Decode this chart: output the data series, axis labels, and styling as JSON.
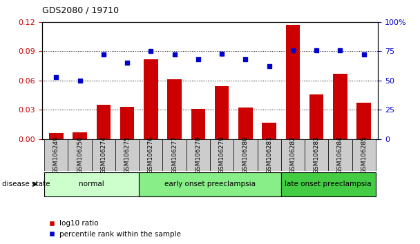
{
  "title": "GDS2080 / 19710",
  "samples": [
    "GSM106249",
    "GSM106250",
    "GSM106274",
    "GSM106275",
    "GSM106276",
    "GSM106277",
    "GSM106278",
    "GSM106279",
    "GSM106280",
    "GSM106281",
    "GSM106282",
    "GSM106283",
    "GSM106284",
    "GSM106285"
  ],
  "log10_ratio": [
    0.006,
    0.007,
    0.035,
    0.033,
    0.082,
    0.061,
    0.031,
    0.054,
    0.032,
    0.017,
    0.117,
    0.046,
    0.067,
    0.037
  ],
  "percentile_rank": [
    53,
    50,
    72,
    65,
    75,
    72,
    68,
    73,
    68,
    62,
    76,
    76,
    76,
    72
  ],
  "bar_color": "#cc0000",
  "dot_color": "#0000cc",
  "ylim_left": [
    0,
    0.12
  ],
  "ylim_right": [
    0,
    100
  ],
  "yticks_left": [
    0,
    0.03,
    0.06,
    0.09,
    0.12
  ],
  "yticks_right": [
    0,
    25,
    50,
    75,
    100
  ],
  "groups": [
    {
      "label": "normal",
      "start": 0,
      "end": 3,
      "color": "#ccffcc"
    },
    {
      "label": "early onset preeclampsia",
      "start": 4,
      "end": 9,
      "color": "#88ee88"
    },
    {
      "label": "late onset preeclampsia",
      "start": 10,
      "end": 13,
      "color": "#44cc44"
    }
  ],
  "disease_label": "disease state",
  "legend_bar_label": "log10 ratio",
  "legend_dot_label": "percentile rank within the sample",
  "bg_color": "#ffffff",
  "axis_color_left": "#cc0000",
  "axis_color_right": "#0000cc",
  "xtick_bg": "#cccccc"
}
